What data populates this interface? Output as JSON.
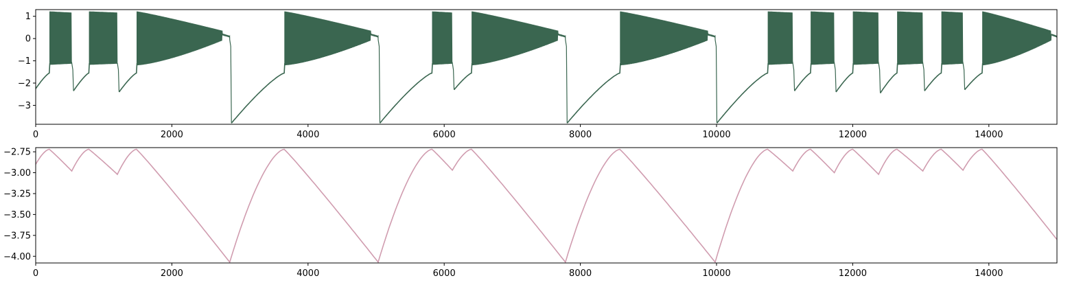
{
  "colors": {
    "top_series": "#3a6650",
    "bottom_series": "#d09caf",
    "axis": "#000000",
    "background": "#ffffff"
  },
  "chart_data": [
    {
      "type": "line",
      "title": "",
      "xlabel": "",
      "ylabel": "",
      "xlim": [
        0,
        15000
      ],
      "ylim": [
        -3.85,
        1.3
      ],
      "grid": false,
      "x_ticks": [
        0,
        2000,
        4000,
        6000,
        8000,
        10000,
        12000,
        14000
      ],
      "x_tick_labels": [
        "0",
        "2000",
        "4000",
        "6000",
        "8000",
        "10000",
        "12000",
        "14000"
      ],
      "y_ticks": [
        1,
        0,
        -1,
        -2,
        -3
      ],
      "y_tick_labels": [
        "1",
        "0",
        "−1",
        "−2",
        "−3"
      ],
      "series": [
        {
          "color": "#3a6650",
          "shape": "bursting membrane trace: slow ramp from reset up to about -1.5, then a fast oscillating burst between about -1.2 and 1.25 whose amplitude decays toward a plateau near 0.1, ending with a drop to the reset level",
          "start_value": -2.25,
          "bursts": [
            {
              "start": 200,
              "end": 530,
              "reset": -2.35
            },
            {
              "start": 780,
              "end": 1200,
              "reset": -2.4
            },
            {
              "start": 1480,
              "end": 2850,
              "reset": -3.8
            },
            {
              "start": 3650,
              "end": 5030,
              "reset": -3.8
            },
            {
              "start": 5820,
              "end": 6120,
              "reset": -2.3
            },
            {
              "start": 6400,
              "end": 7780,
              "reset": -3.8
            },
            {
              "start": 8580,
              "end": 9980,
              "reset": -3.8
            },
            {
              "start": 10750,
              "end": 11120,
              "reset": -2.35
            },
            {
              "start": 11380,
              "end": 11730,
              "reset": -2.4
            },
            {
              "start": 12000,
              "end": 12380,
              "reset": -2.45
            },
            {
              "start": 12650,
              "end": 13030,
              "reset": -2.35
            },
            {
              "start": 13300,
              "end": 13620,
              "reset": -2.3
            },
            {
              "start": 13900,
              "end": 15000,
              "reset": null
            }
          ]
        }
      ]
    },
    {
      "type": "line",
      "title": "",
      "xlabel": "",
      "ylabel": "",
      "xlim": [
        0,
        15000
      ],
      "ylim": [
        -4.08,
        -2.7
      ],
      "grid": false,
      "x_ticks": [
        0,
        2000,
        4000,
        6000,
        8000,
        10000,
        12000,
        14000
      ],
      "x_tick_labels": [
        "0",
        "2000",
        "4000",
        "6000",
        "8000",
        "10000",
        "12000",
        "14000"
      ],
      "y_ticks": [
        -2.75,
        -3.0,
        -3.25,
        -3.5,
        -3.75,
        -4.0
      ],
      "y_tick_labels": [
        "−2.75",
        "−3.00",
        "−3.25",
        "−3.50",
        "−3.75",
        "−4.00"
      ],
      "series": [
        {
          "color": "#d09caf",
          "x": [
            0,
            200,
            530,
            780,
            1200,
            1480,
            2850,
            3650,
            5030,
            5820,
            6120,
            6400,
            7780,
            8580,
            9980,
            10750,
            11120,
            11380,
            11730,
            12000,
            12380,
            12650,
            13030,
            13300,
            13620,
            13900,
            15000
          ],
          "y": [
            -2.9,
            -2.72,
            -2.98,
            -2.72,
            -3.02,
            -2.72,
            -4.07,
            -2.72,
            -4.07,
            -2.72,
            -2.97,
            -2.72,
            -4.07,
            -2.72,
            -4.07,
            -2.72,
            -2.98,
            -2.72,
            -3.0,
            -2.72,
            -3.02,
            -2.72,
            -2.98,
            -2.72,
            -2.97,
            -2.72,
            -3.8
          ]
        }
      ]
    }
  ]
}
